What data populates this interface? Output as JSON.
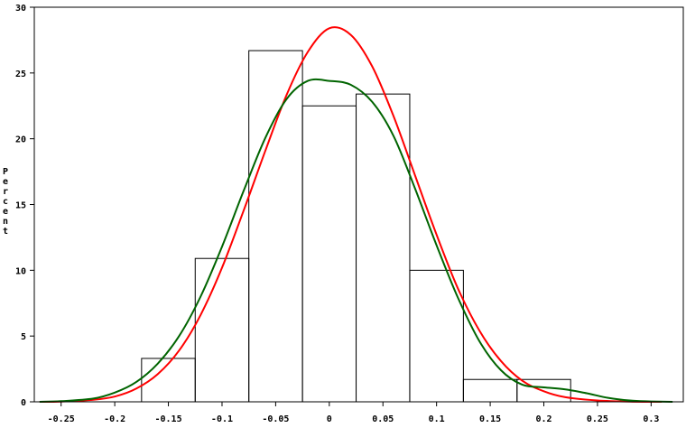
{
  "chart_data": {
    "type": "bar",
    "title": "",
    "xlabel": "",
    "ylabel": "Percent",
    "xlim": [
      -0.275,
      0.33
    ],
    "ylim": [
      0,
      30
    ],
    "grid": false,
    "bins": [
      {
        "x0": -0.175,
        "x1": -0.125,
        "value": 3.3
      },
      {
        "x0": -0.125,
        "x1": -0.075,
        "value": 10.9
      },
      {
        "x0": -0.075,
        "x1": -0.025,
        "value": 26.7
      },
      {
        "x0": -0.025,
        "x1": 0.025,
        "value": 22.5
      },
      {
        "x0": 0.025,
        "x1": 0.075,
        "value": 23.4
      },
      {
        "x0": 0.075,
        "x1": 0.125,
        "value": 10.0
      },
      {
        "x0": 0.125,
        "x1": 0.175,
        "value": 1.7
      },
      {
        "x0": 0.175,
        "x1": 0.225,
        "value": 1.7
      }
    ],
    "x_ticks": [
      {
        "value": -0.25,
        "label": "-0.25"
      },
      {
        "value": -0.2,
        "label": "-0.2"
      },
      {
        "value": -0.15,
        "label": "-0.15"
      },
      {
        "value": -0.1,
        "label": "-0.1"
      },
      {
        "value": -0.05,
        "label": "-0.05"
      },
      {
        "value": 0,
        "label": "0"
      },
      {
        "value": 0.05,
        "label": "0.05"
      },
      {
        "value": 0.1,
        "label": "0.1"
      },
      {
        "value": 0.15,
        "label": "0.15"
      },
      {
        "value": 0.2,
        "label": "0.2"
      },
      {
        "value": 0.25,
        "label": "0.25"
      },
      {
        "value": 0.3,
        "label": "0.3"
      }
    ],
    "y_ticks": [
      {
        "value": 0,
        "label": "0"
      },
      {
        "value": 5,
        "label": "5"
      },
      {
        "value": 10,
        "label": "10"
      },
      {
        "value": 15,
        "label": "15"
      },
      {
        "value": 20,
        "label": "20"
      },
      {
        "value": 25,
        "label": "25"
      },
      {
        "value": 30,
        "label": "30"
      }
    ],
    "series": [
      {
        "kind": "normal-curve",
        "color": "#ff0000",
        "points": [
          [
            -0.27,
            0.0
          ],
          [
            -0.25,
            0.02
          ],
          [
            -0.22,
            0.15
          ],
          [
            -0.2,
            0.4
          ],
          [
            -0.18,
            1.0
          ],
          [
            -0.16,
            2.1
          ],
          [
            -0.14,
            3.9
          ],
          [
            -0.12,
            6.6
          ],
          [
            -0.1,
            10.2
          ],
          [
            -0.08,
            14.5
          ],
          [
            -0.06,
            19.0
          ],
          [
            -0.04,
            23.3
          ],
          [
            -0.02,
            26.6
          ],
          [
            0.0,
            28.4
          ],
          [
            0.02,
            27.9
          ],
          [
            0.04,
            25.5
          ],
          [
            0.06,
            21.7
          ],
          [
            0.08,
            17.2
          ],
          [
            0.1,
            12.7
          ],
          [
            0.12,
            8.6
          ],
          [
            0.14,
            5.4
          ],
          [
            0.16,
            3.1
          ],
          [
            0.18,
            1.6
          ],
          [
            0.2,
            0.8
          ],
          [
            0.22,
            0.35
          ],
          [
            0.25,
            0.1
          ],
          [
            0.28,
            0.02
          ],
          [
            0.31,
            0.0
          ]
        ]
      },
      {
        "kind": "kernel-density",
        "color": "#006400",
        "points": [
          [
            -0.27,
            0.0
          ],
          [
            -0.25,
            0.05
          ],
          [
            -0.22,
            0.25
          ],
          [
            -0.2,
            0.7
          ],
          [
            -0.18,
            1.5
          ],
          [
            -0.16,
            2.9
          ],
          [
            -0.14,
            5.0
          ],
          [
            -0.12,
            8.0
          ],
          [
            -0.1,
            11.8
          ],
          [
            -0.08,
            16.0
          ],
          [
            -0.06,
            20.0
          ],
          [
            -0.04,
            23.0
          ],
          [
            -0.02,
            24.4
          ],
          [
            0.0,
            24.4
          ],
          [
            0.02,
            24.1
          ],
          [
            0.04,
            22.8
          ],
          [
            0.06,
            20.2
          ],
          [
            0.08,
            16.2
          ],
          [
            0.1,
            11.9
          ],
          [
            0.12,
            7.9
          ],
          [
            0.14,
            4.6
          ],
          [
            0.16,
            2.4
          ],
          [
            0.18,
            1.3
          ],
          [
            0.2,
            1.1
          ],
          [
            0.22,
            0.95
          ],
          [
            0.24,
            0.65
          ],
          [
            0.26,
            0.3
          ],
          [
            0.28,
            0.1
          ],
          [
            0.3,
            0.03
          ],
          [
            0.32,
            0.0
          ]
        ]
      }
    ]
  }
}
